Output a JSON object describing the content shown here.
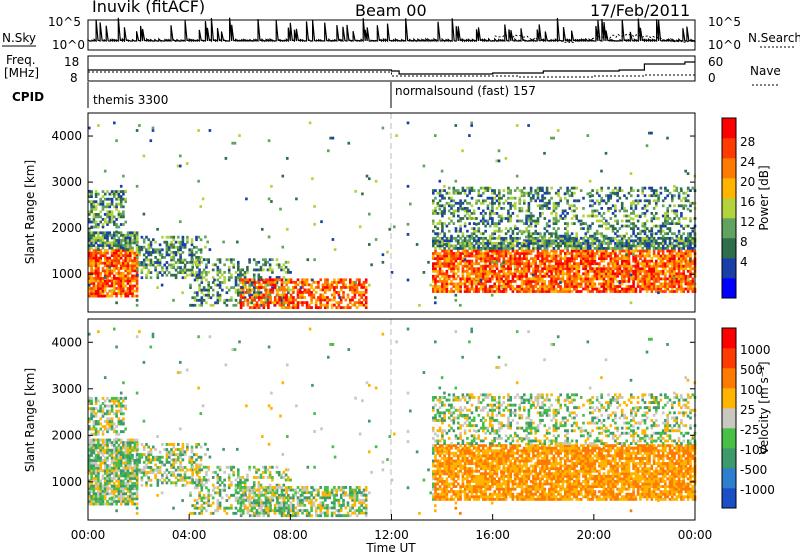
{
  "header": {
    "station": "Inuvik (fitACF)",
    "beam": "Beam 00",
    "date": "17/Feb/2011"
  },
  "strip": {
    "nsky_label": "N.Sky",
    "nsearch_label": "N.Search",
    "freq_label_1": "Freq.",
    "freq_label_2": "[MHz]",
    "nave_label": "Nave",
    "cpid_label": "CPID",
    "nsky_ticks": [
      "10^5",
      "10^0"
    ],
    "nsearch_ticks": [
      "10^5",
      "10^0"
    ],
    "freq_ticks": [
      "18",
      "8"
    ],
    "nave_ticks": [
      "60",
      "0"
    ],
    "cpid_segments": [
      {
        "label": "themis 3300",
        "start": 0,
        "end": 12
      },
      {
        "label": "normalsound (fast) 157",
        "start": 12,
        "end": 24
      }
    ]
  },
  "colorbars": {
    "power": {
      "title": "Power [dB]",
      "ticks": [
        "28",
        "24",
        "20",
        "16",
        "12",
        "8",
        "4"
      ],
      "colors": [
        "#0000ff",
        "#1b3fa8",
        "#2e6e4a",
        "#5fa35f",
        "#b4d23c",
        "#ffb400",
        "#ff7a00",
        "#ff3c00",
        "#ff0000"
      ]
    },
    "velocity": {
      "title": "Velocity [m s⁻¹]",
      "ticks": [
        "1000",
        "500",
        "100",
        "25",
        "-25",
        "-100",
        "-500",
        "-1000"
      ],
      "colors": [
        "#1a4fc8",
        "#2f7fd0",
        "#3d9a6a",
        "#48c048",
        "#c8c8c0",
        "#ffb400",
        "#ff7a00",
        "#ff3c00",
        "#ff0000"
      ]
    }
  },
  "chart_data": [
    {
      "type": "heatmap",
      "name": "power",
      "ylabel": "Slant Range [km]",
      "ylim": [
        180,
        4500
      ],
      "yticks": [
        "1000",
        "2000",
        "3000",
        "4000"
      ],
      "xlim": [
        0,
        24
      ],
      "marker_hour": 12
    },
    {
      "type": "heatmap",
      "name": "velocity",
      "xlabel": "Time UT",
      "ylabel": "Slant Range [km]",
      "ylim": [
        180,
        4500
      ],
      "yticks": [
        "1000",
        "2000",
        "3000",
        "4000"
      ],
      "xlim": [
        0,
        24
      ],
      "xticks": [
        "00:00",
        "04:00",
        "08:00",
        "12:00",
        "16:00",
        "20:00",
        "00:00"
      ],
      "marker_hour": 12
    }
  ]
}
